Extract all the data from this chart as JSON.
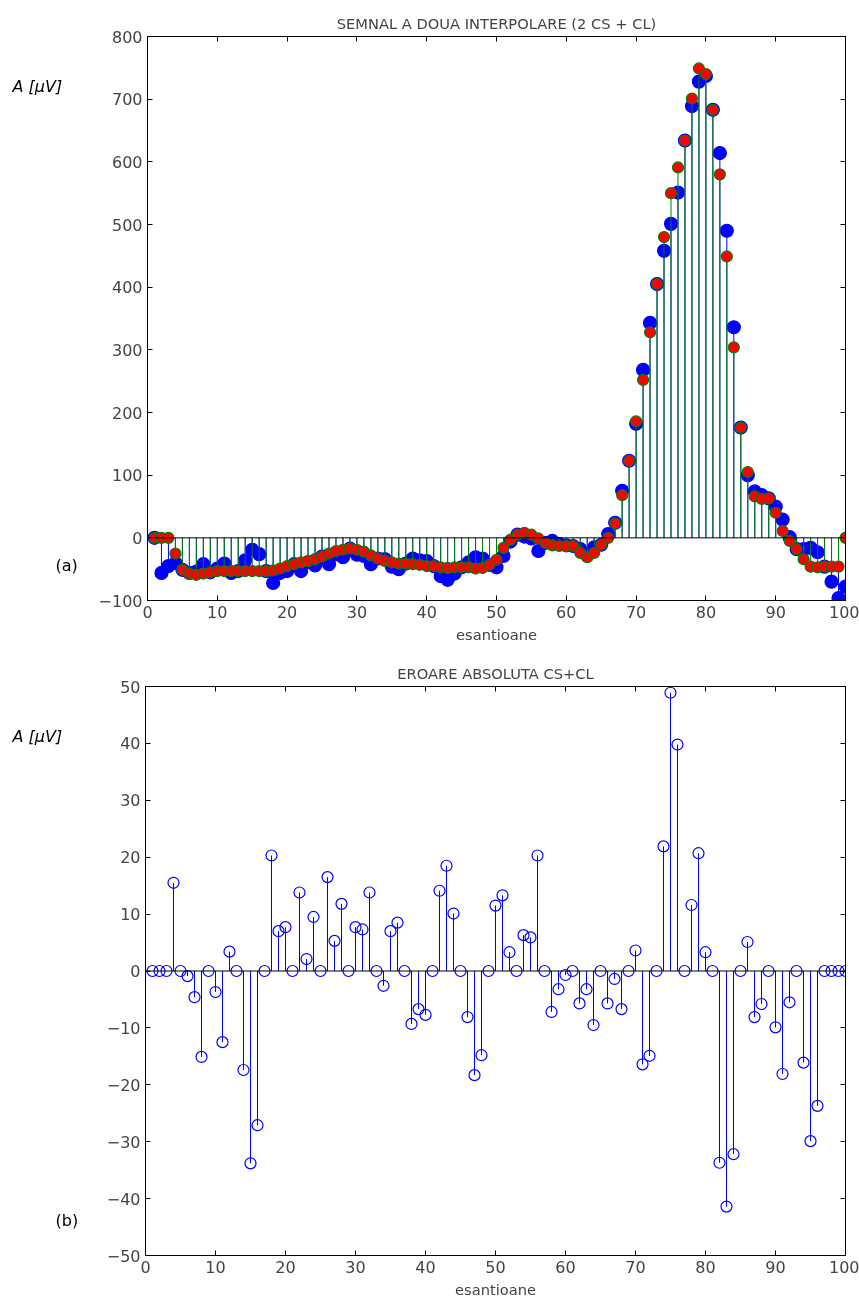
{
  "chart_data": [
    {
      "type": "lollipop",
      "title": "SEMNAL A DOUA INTERPOLARE (2 CS + CL)",
      "xlabel": "esantioane",
      "ylabel": "A [μV]",
      "annotations": [
        "(a)"
      ],
      "marker": "circle",
      "x": [
        1,
        2,
        3,
        4,
        5,
        6,
        7,
        8,
        9,
        10,
        11,
        12,
        13,
        14,
        15,
        16,
        17,
        18,
        19,
        20,
        21,
        22,
        23,
        24,
        25,
        26,
        27,
        28,
        29,
        30,
        31,
        32,
        33,
        34,
        35,
        36,
        37,
        38,
        39,
        40,
        41,
        42,
        43,
        44,
        45,
        46,
        47,
        48,
        49,
        50,
        51,
        52,
        53,
        54,
        55,
        56,
        57,
        58,
        59,
        60,
        61,
        62,
        63,
        64,
        65,
        66,
        67,
        68,
        69,
        70,
        71,
        72,
        73,
        74,
        75,
        76,
        77,
        78,
        79,
        80,
        81,
        82,
        83,
        84,
        85,
        86,
        87,
        88,
        89,
        90,
        91,
        92,
        93,
        94,
        95,
        96,
        97,
        98,
        99,
        100
      ],
      "xlim": [
        0,
        100
      ],
      "xticks": [
        0,
        10,
        20,
        30,
        40,
        50,
        60,
        70,
        80,
        90,
        100
      ],
      "ylim": [
        -100,
        800
      ],
      "yticks": [
        -100,
        0,
        100,
        200,
        300,
        400,
        500,
        600,
        700,
        800
      ],
      "ref_lines": [
        {
          "axis": "y",
          "value": 0,
          "color": "#000000"
        }
      ],
      "series": [
        {
          "color": "#0000ff",
          "values": [
            0,
            -56,
            -45,
            -40,
            -51,
            -56,
            -54,
            -42,
            -55,
            -49,
            -41,
            -56,
            -53,
            -36,
            -19,
            -26,
            -53,
            -72,
            -56,
            -53,
            -42,
            -53,
            -39,
            -44,
            -30,
            -42,
            -26,
            -31,
            -17,
            -27,
            -29,
            -42,
            -33,
            -34,
            -46,
            -50,
            -41,
            -33,
            -36,
            -37,
            -45,
            -61,
            -67,
            -57,
            -47,
            -39,
            -31,
            -33,
            -43,
            -47,
            -29,
            -6,
            5,
            2,
            -1,
            -21,
            -8,
            -5,
            -10,
            -12,
            -13,
            -18,
            -28,
            -15,
            -11,
            6,
            24,
            75,
            123,
            182,
            268,
            343,
            405,
            458,
            501,
            551,
            634,
            689,
            728,
            737,
            683,
            614,
            490,
            336,
            176,
            100,
            74,
            68,
            63,
            50,
            29,
            1,
            -18,
            -18,
            -16,
            -23,
            -46,
            -70,
            -96,
            -78
          ]
        },
        {
          "color": "#ff0000",
          "values": [
            0,
            0,
            0,
            -25,
            -51,
            -57,
            -59,
            -57,
            -55,
            -53,
            -53,
            -53,
            -53,
            -53,
            -53,
            -53,
            -53,
            -52,
            -49,
            -45,
            -42,
            -39,
            -37,
            -34,
            -30,
            -25,
            -21,
            -19,
            -17,
            -19,
            -22,
            -28,
            -33,
            -37,
            -39,
            -41,
            -41,
            -42,
            -43,
            -45,
            -45,
            -47,
            -48,
            -47,
            -47,
            -47,
            -49,
            -48,
            -43,
            -35,
            -16,
            -3,
            5,
            8,
            5,
            -1,
            -8,
            -12,
            -13,
            -13,
            -13,
            -24,
            -31,
            -24,
            -11,
            0,
            23,
            68,
            123,
            186,
            252,
            328,
            405,
            480,
            550,
            591,
            634,
            701,
            749,
            740,
            683,
            580,
            449,
            304,
            176,
            105,
            66,
            62,
            63,
            40,
            11,
            -5,
            -18,
            -34,
            -46,
            -47,
            -46,
            -46,
            -46,
            0
          ]
        }
      ]
    },
    {
      "type": "lollipop",
      "title": "EROARE ABSOLUTA CS+CL",
      "xlabel": "esantioane",
      "ylabel": "A [μV]",
      "annotations": [
        "(b)"
      ],
      "marker": "circle",
      "x": [
        1,
        2,
        3,
        4,
        5,
        6,
        7,
        8,
        9,
        10,
        11,
        12,
        13,
        14,
        15,
        16,
        17,
        18,
        19,
        20,
        21,
        22,
        23,
        24,
        25,
        26,
        27,
        28,
        29,
        30,
        31,
        32,
        33,
        34,
        35,
        36,
        37,
        38,
        39,
        40,
        41,
        42,
        43,
        44,
        45,
        46,
        47,
        48,
        49,
        50,
        51,
        52,
        53,
        54,
        55,
        56,
        57,
        58,
        59,
        60,
        61,
        62,
        63,
        64,
        65,
        66,
        67,
        68,
        69,
        70,
        71,
        72,
        73,
        74,
        75,
        76,
        77,
        78,
        79,
        80,
        81,
        82,
        83,
        84,
        85,
        86,
        87,
        88,
        89,
        90,
        91,
        92,
        93,
        94,
        95,
        96,
        97,
        98,
        99,
        100
      ],
      "xlim": [
        0,
        100
      ],
      "xticks": [
        0,
        10,
        20,
        30,
        40,
        50,
        60,
        70,
        80,
        90,
        100
      ],
      "ylim": [
        -50,
        50
      ],
      "yticks": [
        -50,
        -40,
        -30,
        -20,
        -10,
        0,
        10,
        20,
        30,
        40,
        50
      ],
      "ref_lines": [
        {
          "axis": "y",
          "value": 0,
          "color": "#000000"
        }
      ],
      "series": [
        {
          "color": "#0000ff",
          "values": [
            0,
            0,
            0,
            15.5,
            0,
            -0.9,
            -4.6,
            -15.1,
            0,
            -3.7,
            -12.5,
            3.4,
            0,
            -17.4,
            -33.8,
            -27.1,
            0,
            20.3,
            7,
            7.7,
            0,
            13.8,
            2.1,
            9.5,
            0,
            16.5,
            5.3,
            11.8,
            0,
            7.7,
            7.3,
            13.8,
            0,
            -2.6,
            7,
            8.5,
            0,
            -9.3,
            -6.7,
            -7.7,
            0,
            14.1,
            18.5,
            10.1,
            0,
            -8.1,
            -18.3,
            -14.8,
            0,
            11.5,
            13.3,
            3.3,
            0,
            6.3,
            5.9,
            20.3,
            0,
            -7.2,
            -3.2,
            -0.7,
            0,
            -5.7,
            -3.2,
            -9.5,
            0,
            -5.7,
            -1.4,
            -6.7,
            0,
            3.6,
            -16.4,
            -14.9,
            0,
            21.9,
            48.9,
            39.8,
            0,
            11.6,
            20.7,
            3.3,
            0,
            -33.7,
            -41.4,
            -32.2,
            0,
            5.1,
            -8.1,
            -5.8,
            0,
            -9.9,
            -18.1,
            -5.5,
            0,
            -16.1,
            -29.9,
            -23.7,
            0,
            0,
            0,
            0
          ]
        }
      ]
    }
  ]
}
